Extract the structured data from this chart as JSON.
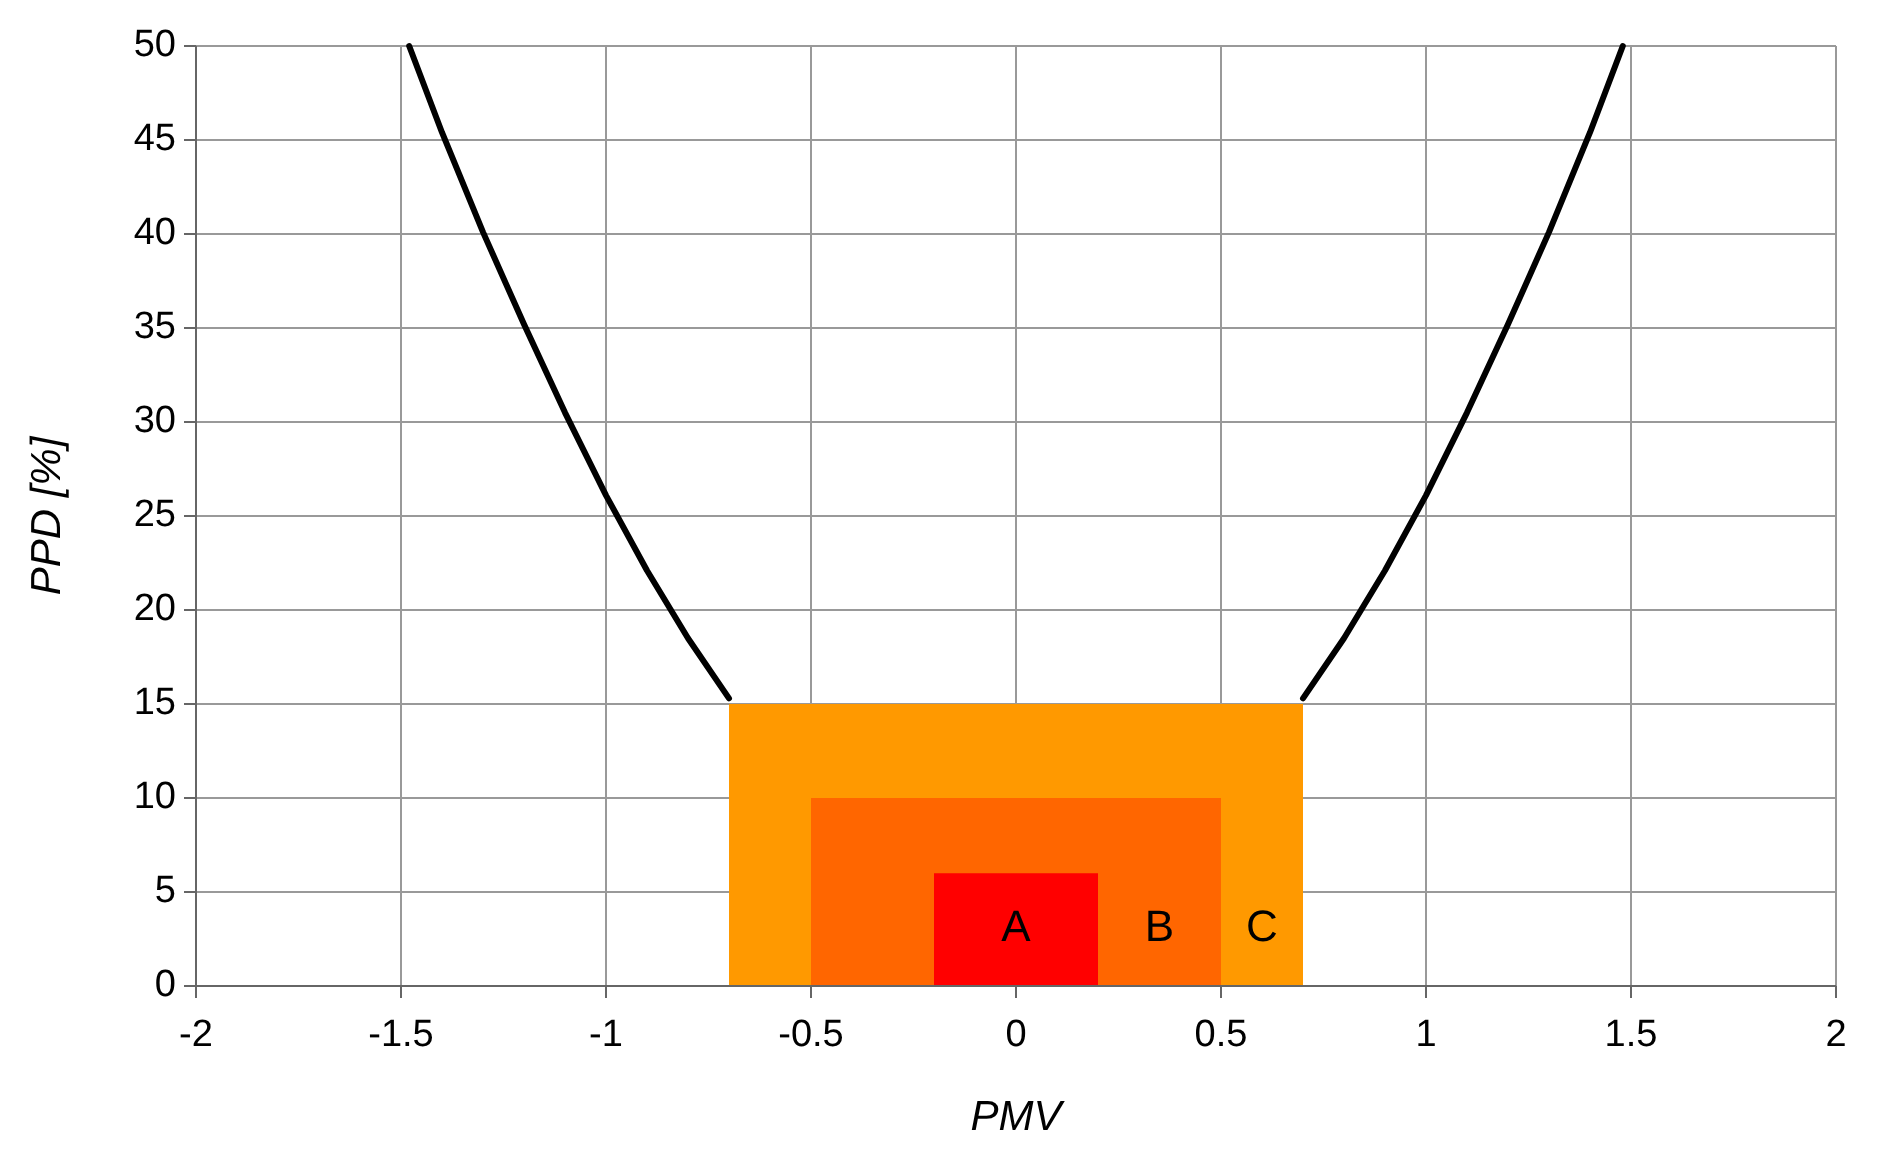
{
  "chart_data": {
    "type": "line",
    "xlabel": "PMV",
    "ylabel": "PPD [%]",
    "xlim": [
      -2,
      2
    ],
    "xticks": [
      -2,
      -1.5,
      -1,
      -0.5,
      0,
      0.5,
      1,
      1.5,
      2
    ],
    "ylim": [
      0,
      50
    ],
    "yticks": [
      0,
      5,
      10,
      15,
      20,
      25,
      30,
      35,
      40,
      45,
      50
    ],
    "grid": true,
    "series": [
      {
        "color": "#000000",
        "x": [
          -1.48,
          -1.4,
          -1.3,
          -1.2,
          -1.1,
          -1.0,
          -0.9,
          -0.8,
          -0.7,
          0,
          0.7,
          0.8,
          0.9,
          1.0,
          1.1,
          1.2,
          1.3,
          1.4,
          1.48
        ],
        "values": [
          50,
          45.4,
          40.1,
          35.2,
          30.5,
          26.1,
          22.1,
          18.5,
          15.3,
          null,
          15.3,
          18.5,
          22.1,
          26.1,
          30.5,
          35.2,
          40.1,
          45.4,
          50
        ]
      },
      {
        "type": "area",
        "name": "C",
        "color": "#ff9900",
        "x": [
          -0.7,
          0.7
        ],
        "values": [
          15,
          15
        ]
      },
      {
        "type": "area",
        "name": "B",
        "color": "#ff6600",
        "x": [
          -0.5,
          0.5
        ],
        "values": [
          10,
          10
        ]
      },
      {
        "type": "area",
        "name": "A",
        "color": "#ff0000",
        "x": [
          -0.2,
          0.2
        ],
        "values": [
          6,
          6
        ]
      }
    ]
  }
}
